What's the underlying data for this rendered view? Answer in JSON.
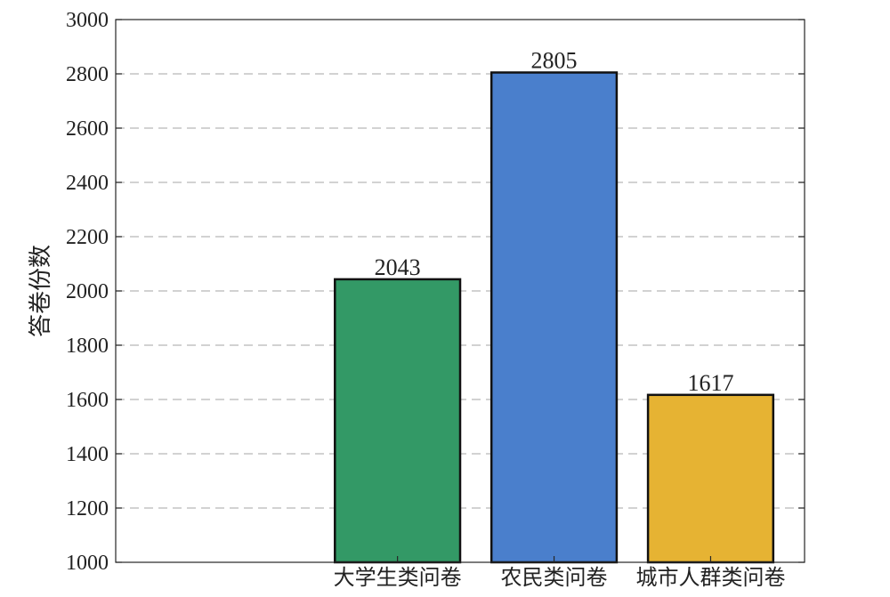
{
  "chart_data": {
    "type": "bar",
    "title": "",
    "xlabel": "",
    "ylabel": "答卷份数",
    "categories": [
      "大学生类问卷",
      "农民类问卷",
      "城市人群类问卷"
    ],
    "values": [
      2043,
      2805,
      1617
    ],
    "data_labels": [
      "2043",
      "2805",
      "1617"
    ],
    "ylim": [
      1000,
      3000
    ],
    "yticks": [
      "1000",
      "1200",
      "1400",
      "1600",
      "1800",
      "2000",
      "2200",
      "2400",
      "2600",
      "2800",
      "3000"
    ],
    "bar_colors": [
      "#339966",
      "#4a7fcc",
      "#e6b333"
    ],
    "grid": "horizontal dashed",
    "legend": "none"
  }
}
